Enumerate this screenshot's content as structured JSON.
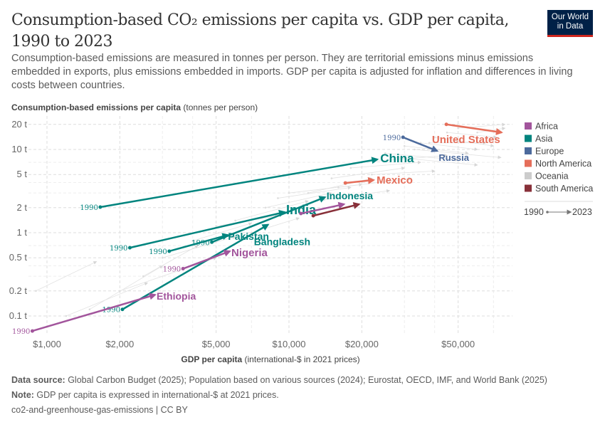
{
  "header": {
    "title": "Consumption-based CO₂ emissions per capita vs. GDP per capita, 1990 to 2023",
    "subtitle": "Consumption-based emissions are measured in tonnes per person. They are territorial emissions minus emissions embedded in exports, plus emissions embedded in imports. GDP per capita is adjusted for inflation and differences in living costs between countries.",
    "logo": "Our World in Data"
  },
  "chart_data": {
    "type": "scatter",
    "subtype": "connected arrows (start year to end year)",
    "xlabel_bold": "GDP per capita",
    "xlabel_rest": " (international-$ in 2021 prices)",
    "ylabel_bold": "Consumption-based emissions per capita",
    "ylabel_rest": " (tonnes per person)",
    "x_scale": "log",
    "y_scale": "log",
    "xlim": [
      930,
      80000
    ],
    "ylim": [
      0.06,
      25
    ],
    "grid": true,
    "x_ticks": [
      {
        "v": 1000,
        "label": "$1,000"
      },
      {
        "v": 2000,
        "label": "$2,000"
      },
      {
        "v": 5000,
        "label": "$5,000"
      },
      {
        "v": 10000,
        "label": "$10,000"
      },
      {
        "v": 20000,
        "label": "$20,000"
      },
      {
        "v": 50000,
        "label": "$50,000"
      }
    ],
    "y_ticks": [
      {
        "v": 0.1,
        "label": "0.1 t"
      },
      {
        "v": 0.2,
        "label": "0.2 t"
      },
      {
        "v": 0.5,
        "label": "0.5 t"
      },
      {
        "v": 1,
        "label": "1 t"
      },
      {
        "v": 2,
        "label": "2 t"
      },
      {
        "v": 5,
        "label": "5 t"
      },
      {
        "v": 10,
        "label": "10 t"
      },
      {
        "v": 20,
        "label": "20 t"
      }
    ],
    "start_year": "1990",
    "end_year": "2023",
    "legend_position": "right",
    "legend": [
      {
        "name": "Africa",
        "color": "#a2559c"
      },
      {
        "name": "Asia",
        "color": "#00847e"
      },
      {
        "name": "Europe",
        "color": "#4c6a9c"
      },
      {
        "name": "North America",
        "color": "#e56e5a"
      },
      {
        "name": "Oceania",
        "color": "#cccccc"
      },
      {
        "name": "South America",
        "color": "#883039"
      }
    ],
    "series": [
      {
        "name": "China",
        "region": "Asia",
        "start": [
          1660,
          2.03
        ],
        "end": [
          23200,
          7.6
        ],
        "show_start_year": true
      },
      {
        "name": "United States",
        "region": "North America",
        "start": [
          44700,
          20.0
        ],
        "end": [
          75700,
          16.0
        ],
        "show_start_year": false
      },
      {
        "name": "Russia",
        "region": "Europe",
        "start": [
          29600,
          14.0
        ],
        "end": [
          41000,
          9.6
        ],
        "show_start_year": true
      },
      {
        "name": "Mexico",
        "region": "North America",
        "start": [
          17100,
          3.96
        ],
        "end": [
          22400,
          4.29
        ],
        "show_start_year": false
      },
      {
        "name": "Indonesia",
        "region": "Asia",
        "start": [
          4800,
          0.77
        ],
        "end": [
          14100,
          2.67
        ],
        "show_start_year": true
      },
      {
        "name": "India",
        "region": "Asia",
        "start": [
          2200,
          0.66
        ],
        "end": [
          9600,
          1.77
        ],
        "show_start_year": true
      },
      {
        "name": "Pakistan",
        "region": "Asia",
        "start": [
          3200,
          0.6
        ],
        "end": [
          5600,
          0.94
        ],
        "show_start_year": true
      },
      {
        "name": "Bangladesh",
        "region": "Asia",
        "start": [
          2050,
          0.12
        ],
        "end": [
          8200,
          1.25
        ],
        "show_start_year": true
      },
      {
        "name": "Nigeria",
        "region": "Africa",
        "start": [
          3650,
          0.37
        ],
        "end": [
          5700,
          0.6
        ],
        "show_start_year": true
      },
      {
        "name": "Ethiopia",
        "region": "Africa",
        "start": [
          870,
          0.066
        ],
        "end": [
          2800,
          0.18
        ],
        "show_start_year": true
      },
      {
        "name": "",
        "region": "Africa",
        "start": [
          11200,
          1.7
        ],
        "end": [
          16900,
          2.2
        ],
        "show_start_year": false
      },
      {
        "name": "",
        "region": "South America",
        "start": [
          12600,
          1.6
        ],
        "end": [
          19500,
          2.2
        ],
        "show_start_year": false
      }
    ],
    "other_countries": [
      [
        900,
        0.2,
        1600,
        0.45
      ],
      [
        1200,
        0.1,
        2600,
        0.25
      ],
      [
        1500,
        0.12,
        3000,
        0.4
      ],
      [
        2500,
        0.3,
        4200,
        0.7
      ],
      [
        3000,
        0.5,
        6000,
        0.9
      ],
      [
        4000,
        0.8,
        7000,
        1.3
      ],
      [
        5000,
        1.2,
        9000,
        1.6
      ],
      [
        6000,
        1.4,
        12000,
        2.4
      ],
      [
        8000,
        2.0,
        15000,
        3.0
      ],
      [
        9000,
        2.6,
        18000,
        3.5
      ],
      [
        12000,
        3.0,
        22000,
        4.5
      ],
      [
        15000,
        4.5,
        30000,
        6.0
      ],
      [
        18000,
        6.0,
        35000,
        7.0
      ],
      [
        20000,
        7.0,
        45000,
        8.5
      ],
      [
        25000,
        9.0,
        50000,
        7.5
      ],
      [
        30000,
        11.0,
        55000,
        9.0
      ],
      [
        35000,
        12.0,
        60000,
        10.0
      ],
      [
        40000,
        14.0,
        70000,
        11.0
      ],
      [
        28000,
        8.0,
        60000,
        6.5
      ],
      [
        33000,
        10.0,
        75000,
        8.0
      ],
      [
        45000,
        16.0,
        72000,
        14.0
      ],
      [
        50000,
        18.0,
        78000,
        20.0
      ],
      [
        22000,
        5.0,
        40000,
        5.5
      ],
      [
        14000,
        2.5,
        26000,
        3.2
      ],
      [
        7000,
        1.0,
        11000,
        1.5
      ],
      [
        10000,
        3.0,
        20000,
        3.8
      ],
      [
        38000,
        12.0,
        65000,
        12.0
      ],
      [
        16000,
        3.5,
        32000,
        4.5
      ],
      [
        2000,
        0.2,
        5000,
        0.5
      ],
      [
        60000,
        16.0,
        78000,
        18.0
      ]
    ]
  },
  "footer": {
    "source_label": "Data source:",
    "source": " Global Carbon Budget (2025); Population based on various sources (2024); Eurostat, OECD, IMF, and World Bank (2025)",
    "note_label": "Note:",
    "note": " GDP per capita is expressed in international-$ at 2021 prices.",
    "license": "co2-and-greenhouse-gas-emissions | CC BY"
  }
}
